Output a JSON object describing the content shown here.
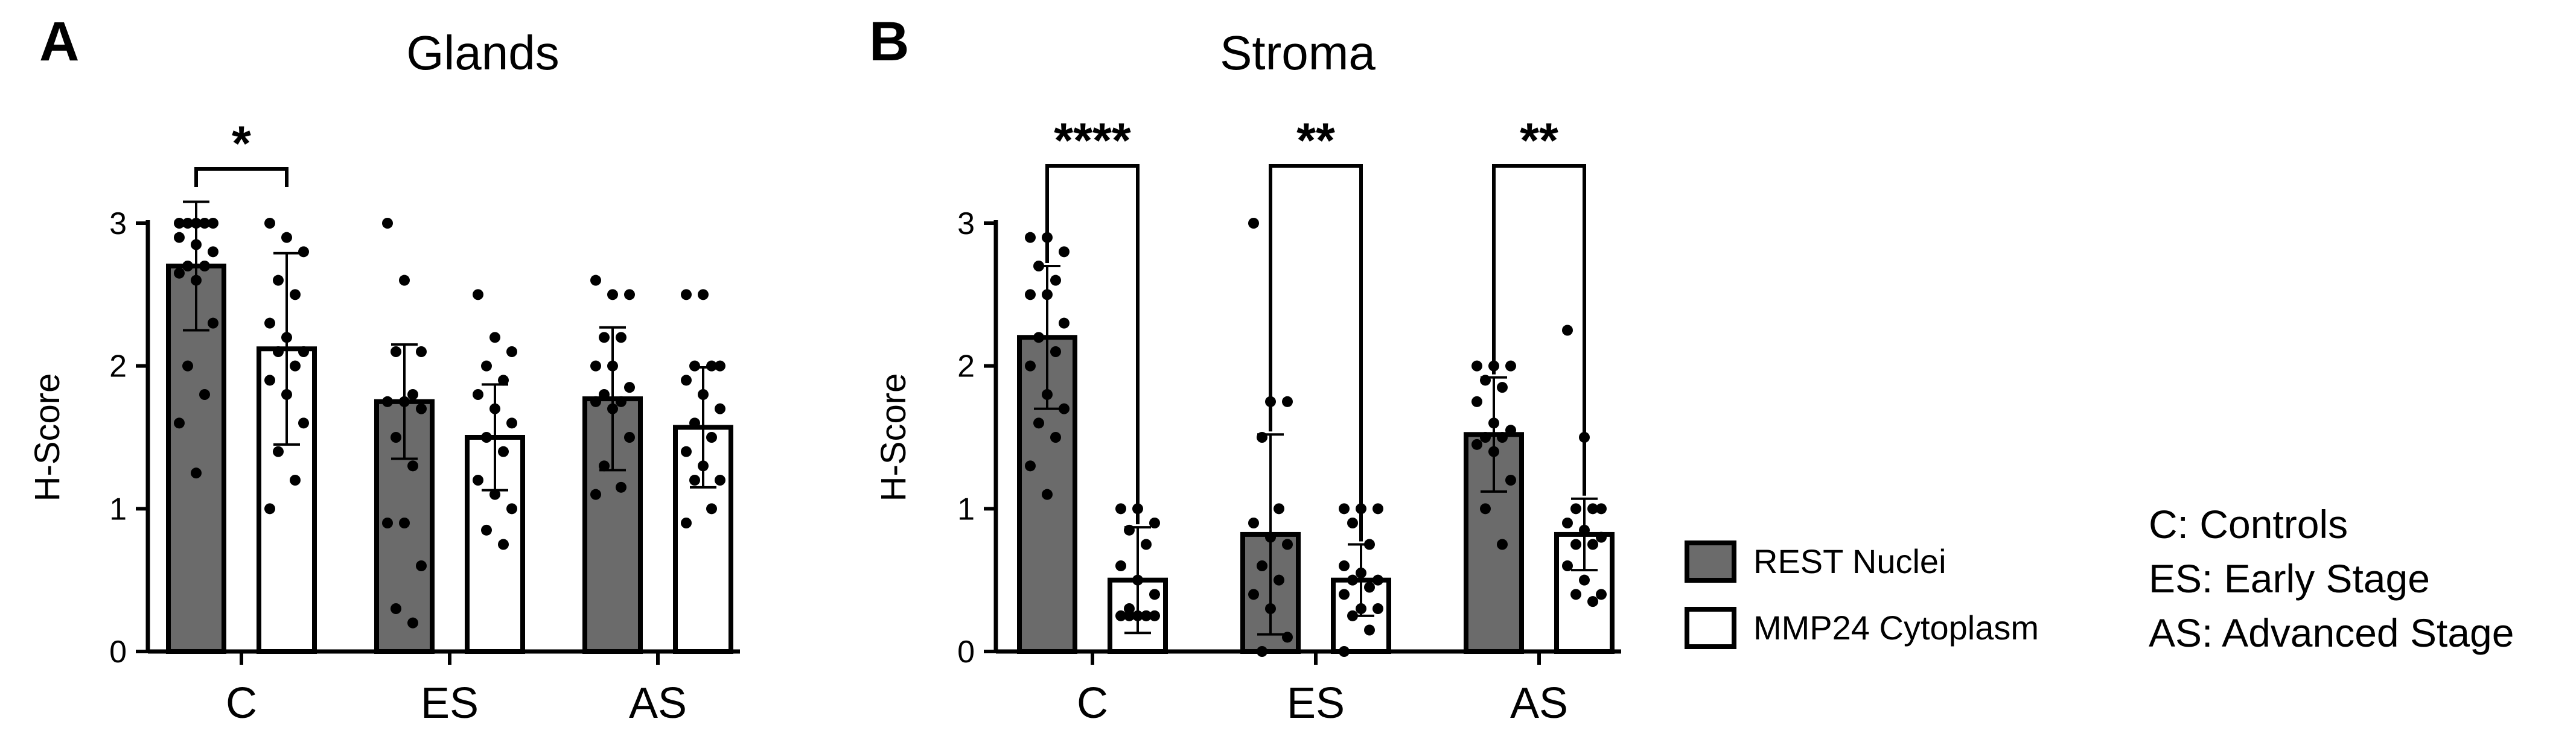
{
  "legend": {
    "items": [
      {
        "label": "REST Nuclei",
        "fill": "#6b6b6b"
      },
      {
        "label": "MMP24 Cytoplasm",
        "fill": "#ffffff"
      }
    ]
  },
  "abbreviations": [
    "C: Controls",
    "ES: Early Stage",
    "AS: Advanced Stage"
  ],
  "colors": {
    "rest": "#6b6b6b",
    "mmp24": "#ffffff",
    "stroke": "#000000"
  },
  "chart_data": [
    {
      "type": "bar",
      "panel": "A",
      "title": "Glands",
      "xlabel": "",
      "ylabel": "H-Score",
      "ylim": [
        0,
        3
      ],
      "yticks": [
        0,
        1,
        2,
        3
      ],
      "categories": [
        "C",
        "ES",
        "AS"
      ],
      "series": [
        {
          "name": "REST Nuclei",
          "values": [
            2.7,
            1.75,
            1.77
          ],
          "sd": [
            0.45,
            0.4,
            0.5
          ],
          "points": [
            [
              3,
              3,
              3,
              3,
              3,
              2.9,
              2.85,
              2.8,
              2.7,
              2.7,
              2.65,
              2.6,
              2.3,
              2.0,
              1.8,
              1.6,
              1.25
            ],
            [
              3,
              2.6,
              2.1,
              2.1,
              1.8,
              1.75,
              1.75,
              1.7,
              1.5,
              1.3,
              0.9,
              0.9,
              0.6,
              0.3,
              0.2
            ],
            [
              2.6,
              2.5,
              2.5,
              2.2,
              2.2,
              2.0,
              2.0,
              1.85,
              1.8,
              1.75,
              1.75,
              1.7,
              1.5,
              1.3,
              1.15,
              1.1
            ]
          ]
        },
        {
          "name": "MMP24 Cytoplasm",
          "values": [
            2.12,
            1.5,
            1.57
          ],
          "sd": [
            0.67,
            0.37,
            0.42
          ],
          "points": [
            [
              3,
              2.9,
              2.8,
              2.6,
              2.5,
              2.3,
              2.2,
              2.1,
              2.1,
              2.0,
              1.9,
              1.8,
              1.6,
              1.4,
              1.2,
              1.0
            ],
            [
              2.5,
              2.2,
              2.1,
              2.0,
              1.9,
              1.8,
              1.7,
              1.6,
              1.5,
              1.4,
              1.2,
              1.1,
              1.0,
              0.85,
              0.75
            ],
            [
              2.5,
              2.5,
              2.0,
              2.0,
              2.0,
              1.9,
              1.8,
              1.7,
              1.6,
              1.5,
              1.4,
              1.3,
              1.2,
              1.2,
              1.0,
              0.9
            ]
          ]
        }
      ],
      "significance": [
        {
          "category": "C",
          "label": "*"
        }
      ]
    },
    {
      "type": "bar",
      "panel": "B",
      "title": "Stroma",
      "xlabel": "",
      "ylabel": "H-Score",
      "ylim": [
        0,
        3
      ],
      "yticks": [
        0,
        1,
        2,
        3
      ],
      "categories": [
        "C",
        "ES",
        "AS"
      ],
      "series": [
        {
          "name": "REST Nuclei",
          "values": [
            2.2,
            0.82,
            1.52
          ],
          "sd": [
            0.5,
            0.7,
            0.4
          ],
          "points": [
            [
              2.9,
              2.9,
              2.8,
              2.7,
              2.6,
              2.5,
              2.5,
              2.3,
              2.2,
              2.1,
              2.0,
              1.8,
              1.7,
              1.6,
              1.5,
              1.3,
              1.1
            ],
            [
              3.0,
              1.75,
              1.75,
              1.5,
              1.0,
              0.9,
              0.8,
              0.75,
              0.6,
              0.5,
              0.4,
              0.3,
              0.1,
              0.0
            ],
            [
              2.0,
              2.0,
              2.0,
              1.9,
              1.85,
              1.75,
              1.6,
              1.55,
              1.5,
              1.5,
              1.45,
              1.4,
              1.2,
              1.0,
              0.75
            ]
          ]
        },
        {
          "name": "MMP24 Cytoplasm",
          "values": [
            0.5,
            0.5,
            0.82
          ],
          "sd": [
            0.37,
            0.25,
            0.25
          ],
          "points": [
            [
              1.0,
              1.0,
              0.9,
              0.85,
              0.75,
              0.6,
              0.5,
              0.4,
              0.3,
              0.25,
              0.25,
              0.25,
              0.25,
              0.25,
              0.25
            ],
            [
              1.0,
              1.0,
              1.0,
              0.9,
              0.75,
              0.6,
              0.55,
              0.5,
              0.5,
              0.45,
              0.4,
              0.3,
              0.3,
              0.25,
              0.15,
              0.0
            ],
            [
              2.25,
              1.5,
              1.0,
              1.0,
              1.0,
              0.9,
              0.85,
              0.8,
              0.75,
              0.75,
              0.6,
              0.5,
              0.4,
              0.4,
              0.35
            ]
          ]
        }
      ],
      "significance": [
        {
          "category": "C",
          "label": "****"
        },
        {
          "category": "ES",
          "label": "**"
        },
        {
          "category": "AS",
          "label": "**"
        }
      ]
    }
  ]
}
